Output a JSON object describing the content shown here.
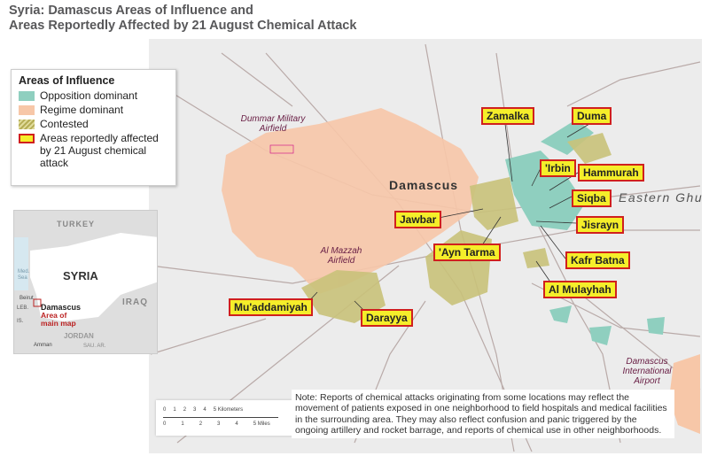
{
  "title": {
    "line1": "Syria: Damascus Areas of Influence and",
    "line2": "Areas Reportedly Affected by 21 August Chemical Attack"
  },
  "legend": {
    "heading": "Areas of Influence",
    "items": [
      {
        "label": "Opposition dominant",
        "color": "#8fcfbf"
      },
      {
        "label": "Regime dominant",
        "color": "#f7c7a8"
      },
      {
        "label": "Contested",
        "color": "#c9c27a"
      },
      {
        "label": "Areas reportedly affected by 21 August chemical attack",
        "color": "#f5ee2a",
        "border": "#d0201e"
      }
    ]
  },
  "inset": {
    "countries": [
      "TURKEY",
      "SYRIA",
      "IRAQ",
      "JORDAN",
      "LEB.",
      "IS.",
      "SAU. AR."
    ],
    "sea": "Med. Sea",
    "cities": [
      "Beirut",
      "Damascus",
      "Amman"
    ],
    "area_label": "Area of main map"
  },
  "map": {
    "city": "Damascus",
    "region": "Eastern Ghutah",
    "airfields": [
      "Dummar Military Airfield",
      "Al Mazzah Airfield",
      "Damascus International Airport"
    ],
    "affected": [
      "Zamalka",
      "Duma",
      "'Irbin",
      "Hammurah",
      "Siqba",
      "Jawbar",
      "Jisrayn",
      "'Ayn Tarma",
      "Kafr Batna",
      "Al Mulayhah",
      "Mu'addamiyah",
      "Darayya"
    ]
  },
  "scale": {
    "km": [
      "0",
      "1",
      "2",
      "3",
      "4",
      "5 Kilometers"
    ],
    "mi": [
      "0",
      "1",
      "2",
      "3",
      "4",
      "5 Miles"
    ]
  },
  "note": "Note: Reports of chemical attacks originating from some locations may reflect the movement of patients exposed in one neighborhood to field hospitals and medical facilities in the surrounding area. They may also reflect confusion and panic triggered by the ongoing artillery and rocket barrage, and reports of chemical use in other neighborhoods."
}
